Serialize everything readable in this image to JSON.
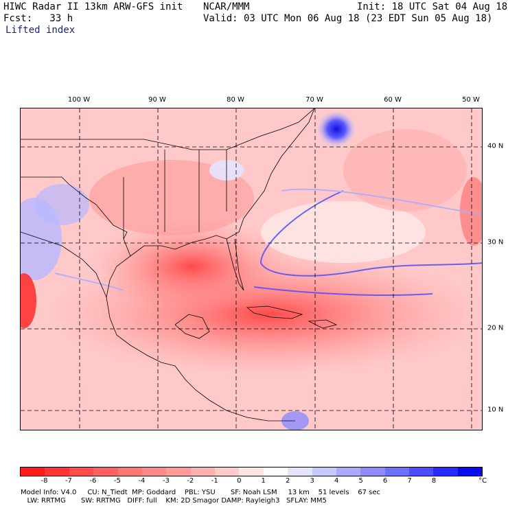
{
  "header": {
    "model": "HIWC Radar II 13km ARW-GFS init",
    "org": "NCAR/MMM",
    "init": "Init: 18 UTC Sat 04 Aug 18",
    "fcst": "Fcst:   33 h",
    "valid": "Valid: 03 UTC Mon 06 Aug 18 (23 EDT Sun 05 Aug 18)",
    "field": "Lifted index"
  },
  "map": {
    "lon_labels": [
      "100 W",
      "90 W",
      "80 W",
      "70 W",
      "60 W",
      "50 W"
    ],
    "lat_labels": [
      "40 N",
      "30 N",
      "20 N",
      "10 N"
    ]
  },
  "colorbar": {
    "unit": "°C",
    "ticks": [
      "-8",
      "-7",
      "-6",
      "-5",
      "-4",
      "-3",
      "-2",
      "-1",
      "0",
      "1",
      "2",
      "3",
      "4",
      "5",
      "6",
      "7",
      "8"
    ],
    "colors": [
      "#ff1a1a",
      "#ff3535",
      "#ff4d4d",
      "#ff6262",
      "#ff7676",
      "#ff8888",
      "#ff9a9a",
      "#ffb0b0",
      "#ffcaca",
      "#ffe5e5",
      "#ffffff",
      "#e4e4ff",
      "#c8c8ff",
      "#aaaaff",
      "#8c8cff",
      "#6e6eff",
      "#4d4dff",
      "#2a2aff",
      "#0a0aee"
    ]
  },
  "footer": {
    "line1": "Model Info: V4.0     CU: N_Tiedt  MP: Goddard    PBL: YSU       SF: Noah LSM     13 km    51 levels    67 sec",
    "line2": "   LW: RRTMG       SW: RRTMG   DIFF: full    KM: 2D Smagor DAMP: Rayleigh3   SFLAY: MM5"
  }
}
